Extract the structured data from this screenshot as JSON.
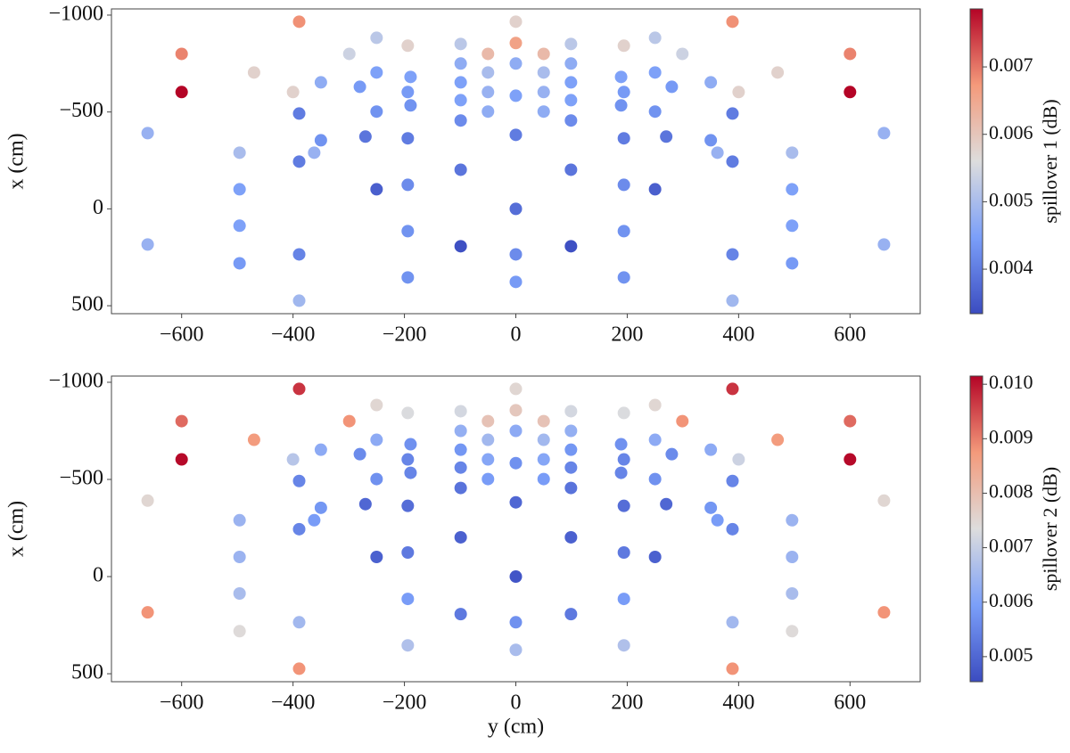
{
  "chart_data": [
    {
      "type": "scatter",
      "ylabel": "x (cm)",
      "colorbar_label": "spillover 1 (dB)",
      "colormap": "coolwarm",
      "x": [
        -661,
        -661,
        -600,
        -600,
        -496,
        -496,
        -496,
        -496,
        -470,
        -400,
        -389,
        -389,
        -389,
        -389,
        -389,
        -362,
        -350,
        -350,
        -299,
        -280,
        -270,
        -250,
        -250,
        -250,
        -250,
        -194,
        -194,
        -194,
        -194,
        -194,
        -194,
        -189,
        -189,
        -99,
        -99,
        -99,
        -99,
        -99,
        -99,
        -99,
        -50,
        -50,
        -50,
        -50,
        0,
        0,
        0,
        0,
        0,
        0,
        0,
        0,
        50,
        50,
        50,
        50,
        99,
        99,
        99,
        99,
        99,
        99,
        99,
        189,
        189,
        194,
        194,
        194,
        194,
        194,
        194,
        250,
        250,
        250,
        250,
        270,
        280,
        299,
        350,
        350,
        362,
        389,
        389,
        389,
        389,
        389,
        400,
        470,
        496,
        496,
        496,
        496,
        600,
        600,
        661,
        661
      ],
      "y": [
        -391,
        184,
        -800,
        -603,
        -290,
        -101,
        87,
        281,
        -704,
        -603,
        -966,
        -492,
        -244,
        235,
        474,
        -290,
        -354,
        -653,
        -800,
        -630,
        -373,
        -883,
        -704,
        -502,
        -101,
        -842,
        -603,
        -364,
        -124,
        115,
        354,
        -681,
        -534,
        -851,
        -750,
        -653,
        -561,
        -456,
        -202,
        193,
        -800,
        -704,
        -603,
        -502,
        -966,
        -856,
        -750,
        -584,
        -382,
        0,
        235,
        377,
        -502,
        -603,
        -704,
        -800,
        193,
        -202,
        -456,
        -561,
        -653,
        -750,
        -851,
        -534,
        -681,
        354,
        115,
        -124,
        -364,
        -603,
        -842,
        -101,
        -502,
        -704,
        -883,
        -373,
        -630,
        -800,
        -653,
        -354,
        -290,
        474,
        235,
        -244,
        -492,
        -966,
        -603,
        -704,
        281,
        87,
        -101,
        -290,
        -603,
        -800,
        184,
        -391
      ],
      "c": [
        0.0048,
        0.0048,
        0.0069,
        0.0079,
        0.005,
        0.0045,
        0.0045,
        0.0044,
        0.0058,
        0.0058,
        0.0068,
        0.004,
        0.004,
        0.0041,
        0.0049,
        0.0048,
        0.0043,
        0.0047,
        0.0054,
        0.0044,
        0.0039,
        0.0052,
        0.0045,
        0.0043,
        0.0036,
        0.0058,
        0.0044,
        0.004,
        0.0042,
        0.0043,
        0.0043,
        0.0045,
        0.0043,
        0.0052,
        0.0047,
        0.0045,
        0.0045,
        0.0042,
        0.0039,
        0.0034,
        0.0062,
        0.005,
        0.0048,
        0.0047,
        0.0058,
        0.0066,
        0.0047,
        0.0045,
        0.004,
        0.0038,
        0.0042,
        0.0044,
        0.0047,
        0.0048,
        0.005,
        0.0062,
        0.0034,
        0.0039,
        0.0042,
        0.0045,
        0.0045,
        0.0047,
        0.0052,
        0.0043,
        0.0045,
        0.0043,
        0.0043,
        0.0042,
        0.004,
        0.0044,
        0.0058,
        0.0036,
        0.0043,
        0.0045,
        0.0052,
        0.0039,
        0.0044,
        0.0054,
        0.0047,
        0.0043,
        0.0048,
        0.0049,
        0.0041,
        0.004,
        0.004,
        0.0068,
        0.0058,
        0.0058,
        0.0044,
        0.0045,
        0.0045,
        0.005,
        0.0079,
        0.0069,
        0.0048,
        0.0048
      ],
      "xlim": [
        -726,
        726
      ],
      "ylim": [
        541,
        -1032
      ],
      "xticks": [
        {
          "value": -600,
          "label": "−600"
        },
        {
          "value": -400,
          "label": "−400"
        },
        {
          "value": -200,
          "label": "−200"
        },
        0,
        200,
        400,
        600
      ],
      "yticks": [
        {
          "value": -1000,
          "label": "−1000"
        },
        {
          "value": -500,
          "label": "−500"
        },
        0,
        500
      ],
      "clim": [
        0.00334,
        0.00786
      ],
      "cticks": [
        0.004,
        0.005,
        0.006,
        0.007
      ]
    },
    {
      "type": "scatter",
      "xlabel": "y (cm)",
      "ylabel": "x (cm)",
      "colorbar_label": "spillover 2 (dB)",
      "colormap": "coolwarm",
      "x": [
        -661,
        -661,
        -600,
        -600,
        -496,
        -496,
        -496,
        -496,
        -470,
        -400,
        -389,
        -389,
        -389,
        -389,
        -389,
        -362,
        -350,
        -350,
        -299,
        -280,
        -270,
        -250,
        -250,
        -250,
        -250,
        -194,
        -194,
        -194,
        -194,
        -194,
        -194,
        -189,
        -189,
        -99,
        -99,
        -99,
        -99,
        -99,
        -99,
        -99,
        -50,
        -50,
        -50,
        -50,
        0,
        0,
        0,
        0,
        0,
        0,
        0,
        0,
        50,
        50,
        50,
        50,
        99,
        99,
        99,
        99,
        99,
        99,
        99,
        189,
        189,
        194,
        194,
        194,
        194,
        194,
        194,
        250,
        250,
        250,
        250,
        270,
        280,
        299,
        350,
        350,
        362,
        389,
        389,
        389,
        389,
        389,
        400,
        470,
        496,
        496,
        496,
        496,
        600,
        600,
        661,
        661
      ],
      "y": [
        -391,
        184,
        -800,
        -603,
        -290,
        -101,
        87,
        281,
        -704,
        -603,
        -966,
        -492,
        -244,
        235,
        474,
        -290,
        -354,
        -653,
        -800,
        -630,
        -373,
        -883,
        -704,
        -502,
        -101,
        -842,
        -603,
        -364,
        -124,
        115,
        354,
        -681,
        -534,
        -851,
        -750,
        -653,
        -561,
        -456,
        -202,
        193,
        -800,
        -704,
        -603,
        -502,
        -966,
        -856,
        -750,
        -584,
        -382,
        0,
        235,
        377,
        -502,
        -603,
        -704,
        -800,
        193,
        -202,
        -456,
        -561,
        -653,
        -750,
        -851,
        -534,
        -681,
        354,
        115,
        -124,
        -364,
        -603,
        -842,
        -101,
        -502,
        -704,
        -883,
        -373,
        -630,
        -800,
        -653,
        -354,
        -290,
        474,
        235,
        -244,
        -492,
        -966,
        -603,
        -704,
        281,
        87,
        -101,
        -290,
        -603,
        -800,
        184,
        -391
      ],
      "c": [
        0.0075,
        0.0088,
        0.0092,
        0.0101,
        0.0064,
        0.0064,
        0.0066,
        0.0074,
        0.0087,
        0.0068,
        0.0097,
        0.0055,
        0.0055,
        0.0065,
        0.0088,
        0.0059,
        0.0058,
        0.0062,
        0.0088,
        0.0056,
        0.005,
        0.0075,
        0.0062,
        0.0057,
        0.0049,
        0.0073,
        0.0055,
        0.0051,
        0.0053,
        0.0059,
        0.0067,
        0.0057,
        0.0055,
        0.0072,
        0.0063,
        0.0058,
        0.0055,
        0.0052,
        0.0049,
        0.0053,
        0.0079,
        0.0065,
        0.0061,
        0.0059,
        0.0075,
        0.0078,
        0.0062,
        0.0057,
        0.005,
        0.0047,
        0.0057,
        0.0066,
        0.0059,
        0.0061,
        0.0065,
        0.0079,
        0.0053,
        0.0049,
        0.0052,
        0.0055,
        0.0058,
        0.0063,
        0.0072,
        0.0055,
        0.0057,
        0.0067,
        0.0059,
        0.0053,
        0.0051,
        0.0055,
        0.0073,
        0.0049,
        0.0057,
        0.0062,
        0.0075,
        0.005,
        0.0056,
        0.0088,
        0.0062,
        0.0058,
        0.0059,
        0.0088,
        0.0065,
        0.0055,
        0.0055,
        0.0097,
        0.0071,
        0.0087,
        0.0074,
        0.0066,
        0.0064,
        0.0064,
        0.0101,
        0.0092,
        0.0088,
        0.0075
      ],
      "xlim": [
        -726,
        726
      ],
      "ylim": [
        541,
        -1032
      ],
      "xticks": [
        {
          "value": -600,
          "label": "−600"
        },
        {
          "value": -400,
          "label": "−400"
        },
        {
          "value": -200,
          "label": "−200"
        },
        0,
        200,
        400,
        600
      ],
      "yticks": [
        {
          "value": -1000,
          "label": "−1000"
        },
        {
          "value": -500,
          "label": "−500"
        },
        0,
        500
      ],
      "clim": [
        0.00454,
        0.01015
      ],
      "cticks": [
        0.005,
        0.006,
        0.007,
        0.008,
        0.009,
        {
          "value": 0.01,
          "label": "0.010"
        }
      ]
    }
  ]
}
